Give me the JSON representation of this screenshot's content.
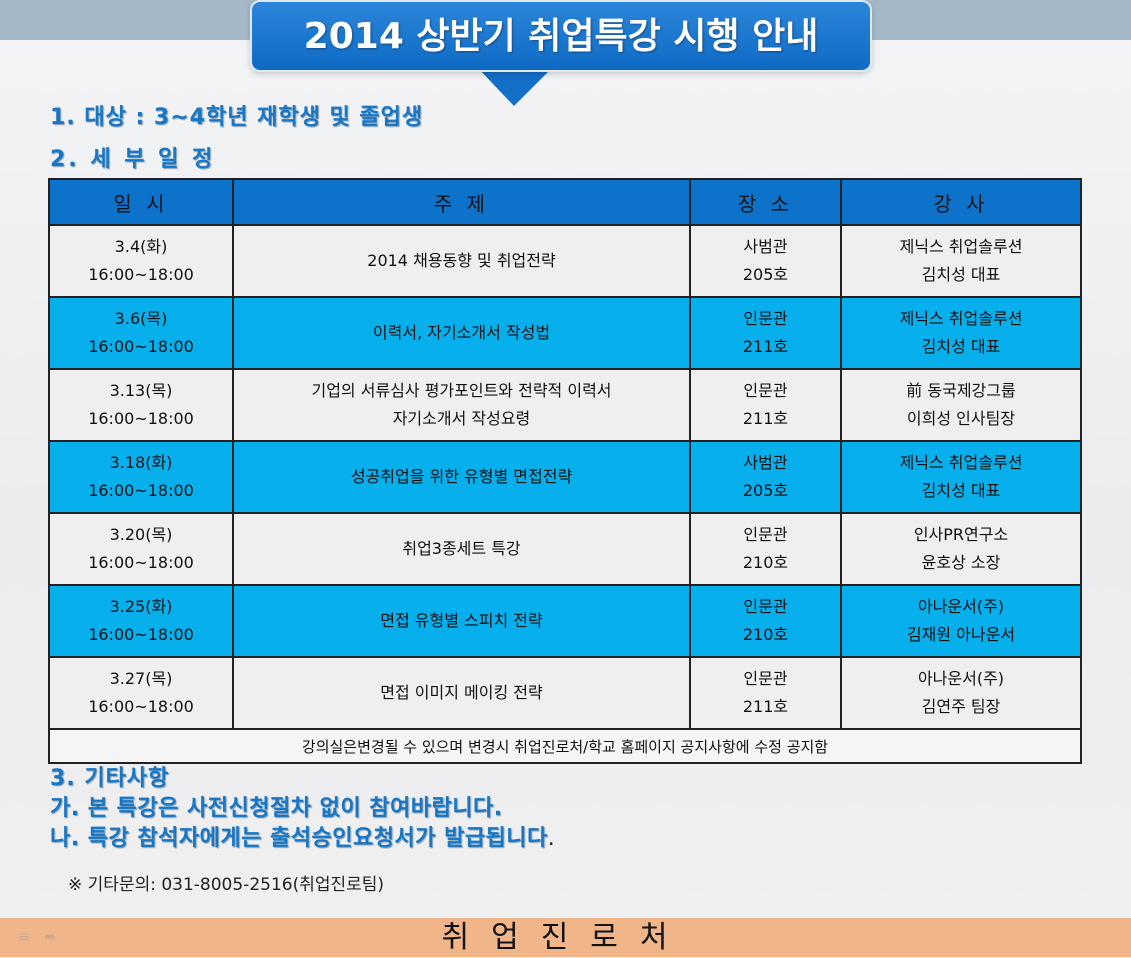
{
  "title": "2014 상반기 취업특강 시행 안내",
  "headings": {
    "target": "1. 대상 : 3~4학년 재학생 및 졸업생",
    "schedule": "2. 세 부 일 정",
    "etc": "3. 기타사항",
    "note1": "가. 본 특강은 사전신청절차 없이 참여바랍니다.",
    "note2": "나. 특강 참석자에게는 출석승인요청서가 발급됩니다",
    "note2_period": "."
  },
  "table": {
    "headers": [
      "일 시",
      "주 제",
      "장 소",
      "강 사"
    ],
    "rows": [
      {
        "date": "3.4(화)",
        "time": "16:00~18:00",
        "topic": [
          "2014 채용동향 및 취업전략"
        ],
        "place": [
          "사범관",
          "205호"
        ],
        "speaker": [
          "제닉스 취업솔루션",
          "김치성 대표"
        ]
      },
      {
        "date": "3.6(목)",
        "time": "16:00~18:00",
        "topic": [
          "이력서, 자기소개서 작성법"
        ],
        "place": [
          "인문관",
          "211호"
        ],
        "speaker": [
          "제닉스 취업솔루션",
          "김치성 대표"
        ]
      },
      {
        "date": "3.13(목)",
        "time": "16:00~18:00",
        "topic": [
          "기업의 서류심사 평가포인트와 전략적 이력서",
          "자기소개서 작성요령"
        ],
        "place": [
          "인문관",
          "211호"
        ],
        "speaker": [
          "前 동국제강그룹",
          "이희성 인사팀장"
        ]
      },
      {
        "date": "3.18(화)",
        "time": "16:00~18:00",
        "topic": [
          "성공취업을 위한 유형별 면접전략"
        ],
        "place": [
          "사범관",
          "205호"
        ],
        "speaker": [
          "제닉스 취업솔루션",
          "김치성 대표"
        ]
      },
      {
        "date": "3.20(목)",
        "time": "16:00~18:00",
        "topic": [
          "취업3종세트 특강"
        ],
        "place": [
          "인문관",
          "210호"
        ],
        "speaker": [
          "인사PR연구소",
          "윤호상 소장"
        ]
      },
      {
        "date": "3.25(화)",
        "time": "16:00~18:00",
        "topic": [
          "면접 유형별 스피치 전략"
        ],
        "place": [
          "인문관",
          "210호"
        ],
        "speaker": [
          "아나운서(주)",
          "김재원 아나운서"
        ]
      },
      {
        "date": "3.27(목)",
        "time": "16:00~18:00",
        "topic": [
          "면접 이미지 메이킹 전략"
        ],
        "place": [
          "인문관",
          "211호"
        ],
        "speaker": [
          "아나운서(주)",
          "김연주 팀장"
        ]
      }
    ],
    "footnote": "강의실은변경될 수 있으며 변경시 취업진로처/학교 홈페이지 공지사항에 수정 공지함"
  },
  "contact": "※ 기타문의: 031-8005-2516(취업진로팀)",
  "footer": "취업진로처",
  "icons": [
    "menu-icon",
    "next-slide-icon"
  ],
  "colors": {
    "title_bg": "#0f6ac4",
    "heading_text": "#1877c4",
    "table_header": "#0d72c9",
    "row_highlight": "#07afec",
    "row_plain": "#efefef",
    "footer_bg": "#f0b68a"
  }
}
